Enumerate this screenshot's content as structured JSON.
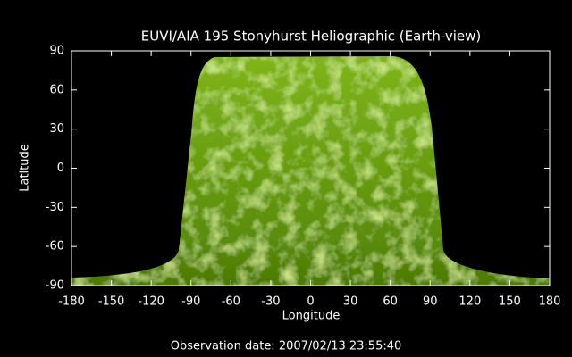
{
  "chart_data": {
    "type": "image",
    "title": "EUVI/AIA 195 Stonyhurst Heliographic (Earth-view)",
    "x_label": "Longitude",
    "y_label": "Latitude",
    "xlim": [
      -180,
      180
    ],
    "ylim": [
      -90,
      90
    ],
    "xticks": [
      -180,
      -150,
      -120,
      -90,
      -60,
      -30,
      0,
      30,
      60,
      90,
      120,
      150,
      180
    ],
    "yticks": [
      -90,
      -60,
      -30,
      0,
      30,
      60,
      90
    ],
    "footer": "Observation date: 2007/02/13 23:55:40"
  }
}
